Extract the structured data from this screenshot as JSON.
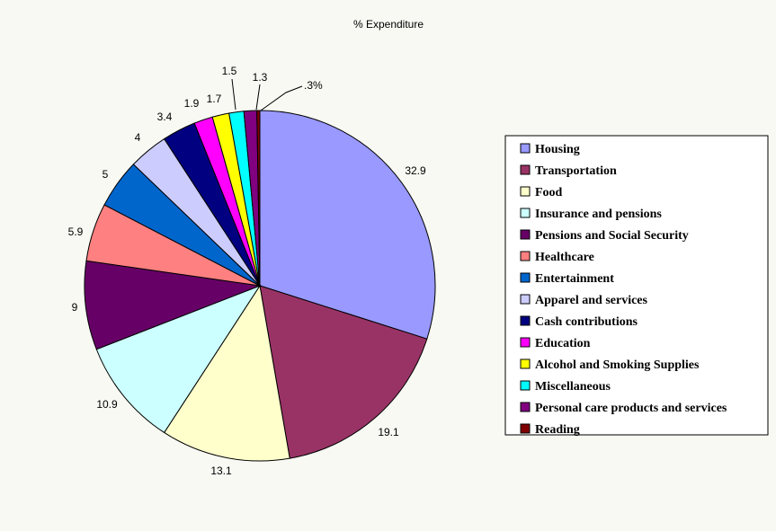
{
  "chart_data": {
    "type": "pie",
    "title": "% Expenditure",
    "legend_position": "right",
    "slices": [
      {
        "label": "Housing",
        "value": 32.9,
        "display": "32.9",
        "color": "#9999ff"
      },
      {
        "label": "Transportation",
        "value": 19.1,
        "display": "19.1",
        "color": "#993366"
      },
      {
        "label": "Food",
        "value": 13.1,
        "display": "13.1",
        "color": "#ffffcc"
      },
      {
        "label": "Insurance and pensions",
        "value": 10.9,
        "display": "10.9",
        "color": "#ccffff"
      },
      {
        "label": "Pensions and Social Security",
        "value": 9,
        "display": "9",
        "color": "#660066"
      },
      {
        "label": "Healthcare",
        "value": 5.9,
        "display": "5.9",
        "color": "#ff8080"
      },
      {
        "label": "Entertainment",
        "value": 5,
        "display": "5",
        "color": "#0066cc"
      },
      {
        "label": "Apparel and services",
        "value": 4,
        "display": "4",
        "color": "#ccccff"
      },
      {
        "label": "Cash contributions",
        "value": 3.4,
        "display": "3.4",
        "color": "#000080"
      },
      {
        "label": "Education",
        "value": 1.9,
        "display": "1.9",
        "color": "#ff00ff"
      },
      {
        "label": "Alcohol and Smoking Supplies",
        "value": 1.7,
        "display": "1.7",
        "color": "#ffff00"
      },
      {
        "label": "Miscellaneous",
        "value": 1.5,
        "display": "1.5",
        "color": "#00ffff"
      },
      {
        "label": "Personal care products and services",
        "value": 1.3,
        "display": "1.3",
        "color": "#800080"
      },
      {
        "label": "Reading",
        "value": 0.3,
        "display": ".3%",
        "color": "#800000"
      }
    ]
  }
}
